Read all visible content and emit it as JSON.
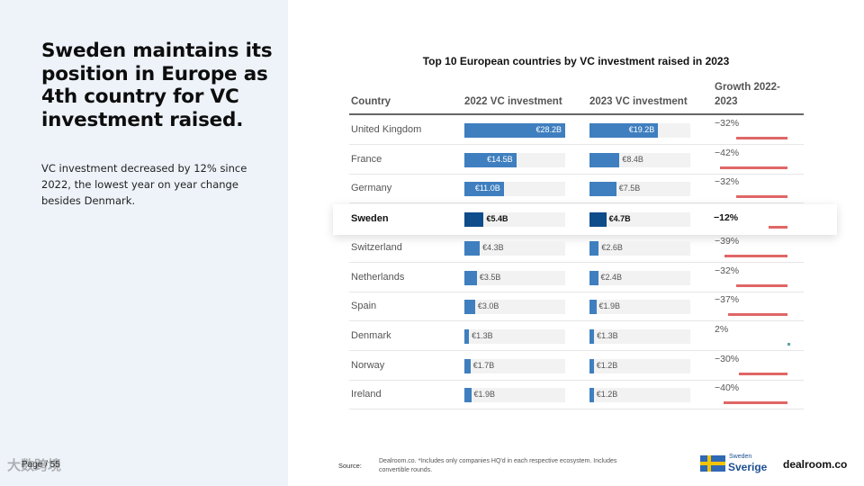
{
  "slide": {
    "headline": "Sweden maintains its position in Europe as 4th country for VC investment raised.",
    "subtext": "VC investment decreased by 12% since 2022, the lowest year on year change besides Denmark.",
    "page_number": "Page / 55",
    "watermark": "大数跨境"
  },
  "chart_data": {
    "type": "bar",
    "title": "Top 10 European countries by VC investment raised in 2023",
    "headers": {
      "country": "Country",
      "y2022": "2022 VC investment",
      "y2023": "2023 VC investment",
      "growth": "Growth 2022-2023"
    },
    "unit": "€B",
    "xlim": [
      0,
      28.2
    ],
    "rows": [
      {
        "country": "United Kingdom",
        "v2022": 28.2,
        "label2022": "€28.2B",
        "v2023": 19.2,
        "label2023": "€19.2B",
        "growth": -32,
        "growth_label": "−32%"
      },
      {
        "country": "France",
        "v2022": 14.5,
        "label2022": "€14.5B",
        "v2023": 8.4,
        "label2023": "€8.4B",
        "growth": -42,
        "growth_label": "−42%"
      },
      {
        "country": "Germany",
        "v2022": 11.0,
        "label2022": "€11.0B",
        "v2023": 7.5,
        "label2023": "€7.5B",
        "growth": -32,
        "growth_label": "−32%"
      },
      {
        "country": "Sweden",
        "v2022": 5.4,
        "label2022": "€5.4B",
        "v2023": 4.7,
        "label2023": "€4.7B",
        "growth": -12,
        "growth_label": "−12%",
        "highlight": true
      },
      {
        "country": "Switzerland",
        "v2022": 4.3,
        "label2022": "€4.3B",
        "v2023": 2.6,
        "label2023": "€2.6B",
        "growth": -39,
        "growth_label": "−39%"
      },
      {
        "country": "Netherlands",
        "v2022": 3.5,
        "label2022": "€3.5B",
        "v2023": 2.4,
        "label2023": "€2.4B",
        "growth": -32,
        "growth_label": "−32%"
      },
      {
        "country": "Spain",
        "v2022": 3.0,
        "label2022": "€3.0B",
        "v2023": 1.9,
        "label2023": "€1.9B",
        "growth": -37,
        "growth_label": "−37%"
      },
      {
        "country": "Denmark",
        "v2022": 1.3,
        "label2022": "€1.3B",
        "v2023": 1.3,
        "label2023": "€1.3B",
        "growth": 2,
        "growth_label": "2%"
      },
      {
        "country": "Norway",
        "v2022": 1.7,
        "label2022": "€1.7B",
        "v2023": 1.2,
        "label2023": "€1.2B",
        "growth": -30,
        "growth_label": "−30%"
      },
      {
        "country": "Ireland",
        "v2022": 1.9,
        "label2022": "€1.9B",
        "v2023": 1.2,
        "label2023": "€1.2B",
        "growth": -40,
        "growth_label": "−40%"
      }
    ]
  },
  "footer": {
    "source_label": "Source:",
    "source_text": "Dealroom.co. *Includes only companies HQ'd in each respective ecosystem. Includes convertible rounds.",
    "sweden_logo_small": "Sweden",
    "sweden_logo_big": "Sverige",
    "dealroom_logo": "dealroom.co"
  },
  "colors": {
    "bar": "#3f7fbf",
    "bar_highlight": "#0f4c8a",
    "negative": "#e06666",
    "positive": "#5ba3a3",
    "panel": "#eef3fa"
  }
}
